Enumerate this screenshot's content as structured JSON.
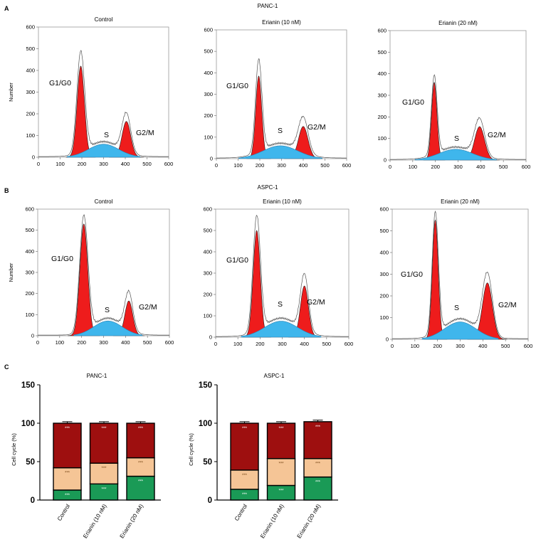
{
  "panels": {
    "A": {
      "letter": "A",
      "title": "PANC-1"
    },
    "B": {
      "letter": "B",
      "title": "ASPC-1"
    },
    "C": {
      "letter": "C"
    }
  },
  "histogram_ylabel": "Number",
  "phase_labels": {
    "g1": "G1/G0",
    "s": "S",
    "g2": "G2/M"
  },
  "chart_data": [
    {
      "type": "area",
      "panel": "A",
      "title": "Control",
      "x_ticks": [
        0,
        100,
        200,
        300,
        400,
        500,
        600
      ],
      "y_ticks": [
        0,
        100,
        200,
        300,
        400,
        500,
        600
      ],
      "xlim": [
        0,
        600
      ],
      "ylim": [
        0,
        600
      ],
      "g1": {
        "center": 195,
        "width": 17,
        "height": 420
      },
      "s": {
        "center": 300,
        "width": 70,
        "height": 60
      },
      "g2": {
        "center": 405,
        "width": 20,
        "height": 165
      },
      "outline_peak": 465
    },
    {
      "type": "area",
      "panel": "A",
      "title": "Erianin (10 nM)",
      "x_ticks": [
        0,
        100,
        200,
        300,
        400,
        500,
        600
      ],
      "y_ticks": [
        0,
        100,
        200,
        300,
        400,
        500,
        600
      ],
      "xlim": [
        0,
        600
      ],
      "ylim": [
        0,
        600
      ],
      "g1": {
        "center": 195,
        "width": 14,
        "height": 385
      },
      "s": {
        "center": 295,
        "width": 80,
        "height": 60
      },
      "g2": {
        "center": 400,
        "width": 22,
        "height": 150
      },
      "outline_peak": 430
    },
    {
      "type": "area",
      "panel": "A",
      "title": "Erianin (20 nM)",
      "x_ticks": [
        0,
        100,
        200,
        300,
        400,
        500,
        600
      ],
      "y_ticks": [
        0,
        100,
        200,
        300,
        400,
        500,
        600
      ],
      "xlim": [
        0,
        600
      ],
      "ylim": [
        0,
        600
      ],
      "g1": {
        "center": 195,
        "width": 12,
        "height": 360
      },
      "s": {
        "center": 290,
        "width": 75,
        "height": 50
      },
      "g2": {
        "center": 395,
        "width": 22,
        "height": 155
      },
      "outline_peak": 365
    },
    {
      "type": "area",
      "panel": "B",
      "title": "Control",
      "x_ticks": [
        0,
        100,
        200,
        300,
        400,
        500,
        600
      ],
      "y_ticks": [
        0,
        100,
        200,
        300,
        400,
        500,
        600
      ],
      "xlim": [
        0,
        600
      ],
      "ylim": [
        0,
        600
      ],
      "g1": {
        "center": 210,
        "width": 18,
        "height": 530
      },
      "s": {
        "center": 320,
        "width": 65,
        "height": 70
      },
      "g2": {
        "center": 415,
        "width": 18,
        "height": 165
      },
      "outline_peak": 550
    },
    {
      "type": "area",
      "panel": "B",
      "title": "Erianin (10 nM)",
      "x_ticks": [
        0,
        100,
        200,
        300,
        400,
        500,
        600
      ],
      "y_ticks": [
        0,
        100,
        200,
        300,
        400,
        500,
        600
      ],
      "xlim": [
        0,
        600
      ],
      "ylim": [
        0,
        600
      ],
      "g1": {
        "center": 185,
        "width": 16,
        "height": 500
      },
      "s": {
        "center": 295,
        "width": 75,
        "height": 75
      },
      "g2": {
        "center": 400,
        "width": 18,
        "height": 240
      },
      "outline_peak": 540
    },
    {
      "type": "area",
      "panel": "B",
      "title": "Erianin (20 nM)",
      "x_ticks": [
        0,
        100,
        200,
        300,
        400,
        500,
        600
      ],
      "y_ticks": [
        0,
        100,
        200,
        300,
        400,
        500,
        600
      ],
      "xlim": [
        0,
        600
      ],
      "ylim": [
        0,
        600
      ],
      "g1": {
        "center": 190,
        "width": 13,
        "height": 550
      },
      "s": {
        "center": 300,
        "width": 70,
        "height": 80
      },
      "g2": {
        "center": 420,
        "width": 22,
        "height": 260
      },
      "outline_peak": 560
    },
    {
      "type": "bar",
      "panel": "C",
      "title": "PANC-1",
      "ylabel": "Cell cycle (%)",
      "ylim": [
        0,
        150
      ],
      "y_ticks": [
        0,
        50,
        100,
        150
      ],
      "categories": [
        "Control",
        "Erianin (10 nM)",
        "Erianin (20 nM)"
      ],
      "series": [
        {
          "values": [
            13,
            21,
            31
          ],
          "color": "#1a9a56"
        },
        {
          "values": [
            29,
            27,
            24
          ],
          "color": "#f5c596"
        },
        {
          "values": [
            58,
            52,
            45
          ],
          "color": "#9e0f0f"
        }
      ],
      "errors": [
        2,
        2,
        2
      ],
      "significance": [
        [
          "***",
          "***",
          "***"
        ],
        [
          "***",
          "***",
          "***"
        ],
        [
          "***",
          "***",
          "***"
        ]
      ]
    },
    {
      "type": "bar",
      "panel": "C",
      "title": "ASPC-1",
      "ylabel": "Cell cycle (%)",
      "ylim": [
        0,
        150
      ],
      "y_ticks": [
        0,
        50,
        100,
        150
      ],
      "categories": [
        "Control",
        "Erianin (10 nM)",
        "Erianin (20 nM)"
      ],
      "series": [
        {
          "values": [
            14,
            19,
            30
          ],
          "color": "#1a9a56"
        },
        {
          "values": [
            25,
            35,
            24
          ],
          "color": "#f5c596"
        },
        {
          "values": [
            61,
            46,
            48
          ],
          "color": "#9e0f0f"
        }
      ],
      "errors": [
        2,
        2,
        2
      ],
      "significance": [
        [
          "***",
          "***",
          "***"
        ],
        [
          "***",
          "***",
          "***"
        ],
        [
          "***",
          "***",
          "***"
        ]
      ]
    }
  ]
}
